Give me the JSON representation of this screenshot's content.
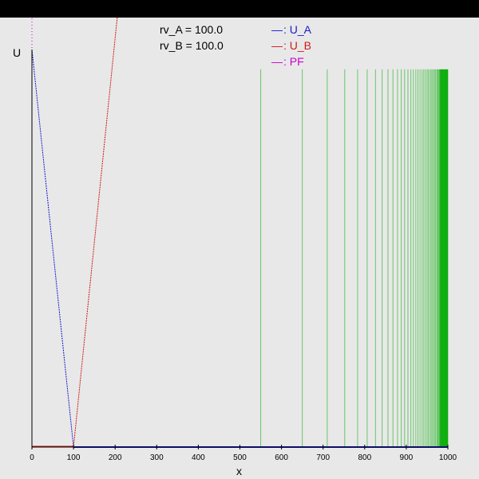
{
  "params": [
    {
      "label": "rv_A = 100.0"
    },
    {
      "label": "rv_B = 100.0"
    }
  ],
  "colors": {
    "background": "#e8e8e8",
    "top_bar": "#000000",
    "U_A": "#1a1acc",
    "U_B": "#cc1a1a",
    "PF": "#cc00cc",
    "green_lines": "#00aa00",
    "axis": "#000000"
  },
  "chart_data": {
    "type": "line",
    "title": "",
    "xlabel": "x",
    "ylabel": "U",
    "xlim": [
      0,
      1000
    ],
    "xticks": [
      0,
      100,
      200,
      300,
      400,
      500,
      600,
      700,
      800,
      900,
      1000
    ],
    "ylim": [
      0,
      1
    ],
    "grid": false,
    "legend_position": "top",
    "legend": [
      {
        "marker": "—",
        "label": ": U_A",
        "series": "U_A"
      },
      {
        "marker": "—",
        "label": ": U_B",
        "series": "U_B"
      },
      {
        "marker": "—",
        "label": ": PF",
        "series": "PF"
      }
    ],
    "series": [
      {
        "name": "U_A",
        "x": [
          0,
          100,
          1000
        ],
        "y": [
          1.0,
          0.0,
          0.0
        ]
      },
      {
        "name": "U_B",
        "x": [
          0,
          100,
          206
        ],
        "y": [
          0.0,
          0.0,
          1.09
        ]
      },
      {
        "name": "PF",
        "x": [
          0,
          0
        ],
        "y": [
          0.0,
          1.09
        ]
      }
    ],
    "vertical_lines": {
      "ymax": 0.95,
      "x": [
        550,
        650,
        710,
        752,
        783,
        806,
        826,
        842,
        856,
        868,
        879,
        888,
        896,
        904,
        911,
        917,
        923,
        928,
        933,
        938,
        942,
        946,
        950,
        953,
        957,
        960,
        963,
        966,
        969,
        971,
        974,
        976,
        978,
        980,
        983,
        985,
        987,
        989,
        991,
        993,
        995,
        997,
        999,
        1000
      ],
      "dense_band": [
        980,
        1000
      ]
    }
  }
}
